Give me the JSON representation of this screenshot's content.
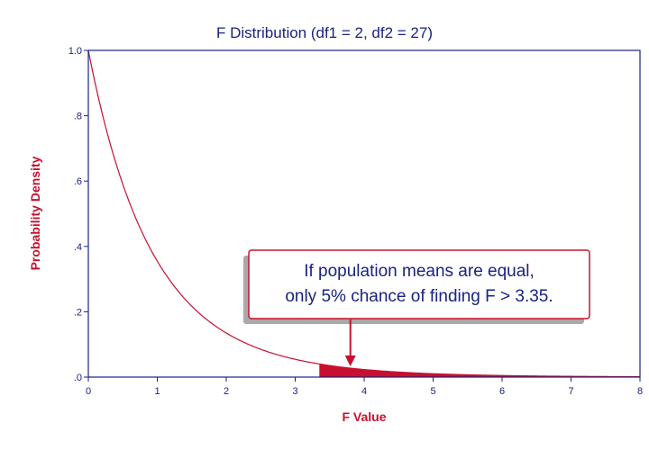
{
  "colors": {
    "curve": "#c8102e",
    "axis": "#1a237e",
    "axis_title": "#c8102e",
    "title": "#1a237e",
    "callout_border": "#c8102e",
    "callout_shadow": "#a9a9a9"
  },
  "chart_data": {
    "type": "area",
    "title": "F Distribution (df1 = 2, df2 = 27)",
    "xlabel": "F Value",
    "ylabel": "Probability Density",
    "xlim": [
      0,
      8
    ],
    "ylim": [
      0,
      1
    ],
    "grid": false,
    "df1": 2,
    "df2": 27,
    "critical_value": 3.35,
    "shaded_tail": "right",
    "x_ticks": [
      0,
      1,
      2,
      3,
      4,
      5,
      6,
      7,
      8
    ],
    "x_tick_labels": [
      "0",
      "1",
      "2",
      "3",
      "4",
      "5",
      "6",
      "7",
      "8"
    ],
    "y_ticks": [
      0,
      0.2,
      0.4,
      0.6,
      0.8,
      1.0
    ],
    "y_tick_labels": [
      ".0",
      ".2",
      ".4",
      ".6",
      ".8",
      "1.0"
    ],
    "annotation": {
      "lines": [
        "If population means are equal,",
        "only 5% chance of finding F > 3.35."
      ],
      "arrow_target_x": 3.8
    }
  }
}
